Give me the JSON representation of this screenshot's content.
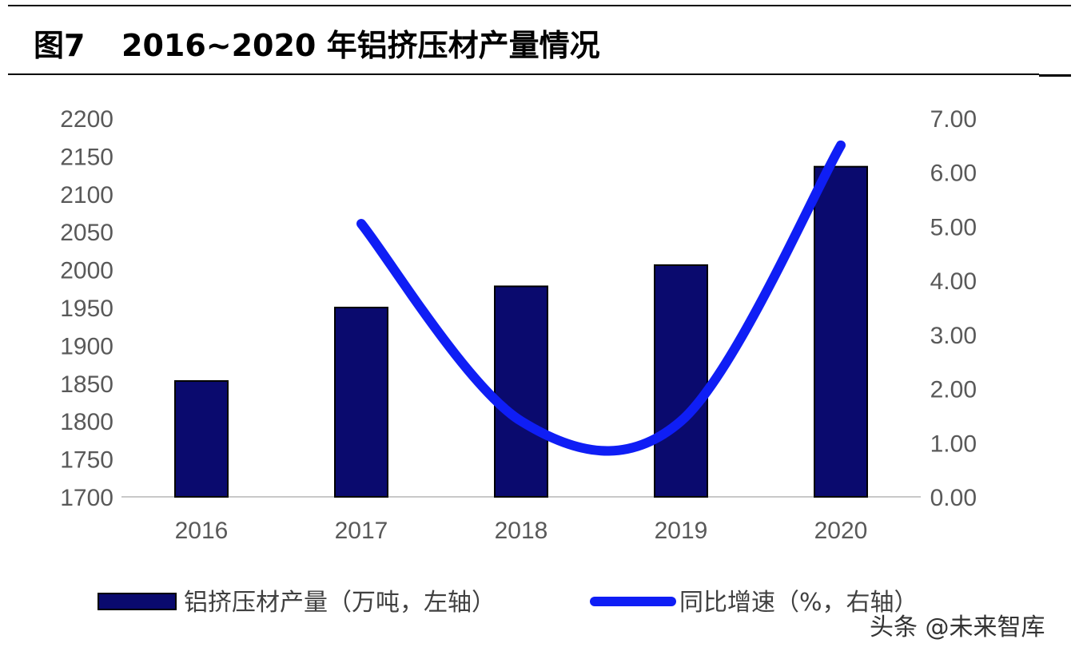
{
  "header": {
    "figure_label": "图7",
    "title": "2016~2020 年铝挤压材产量情况"
  },
  "chart_data": {
    "type": "bar",
    "categories": [
      "2016",
      "2017",
      "2018",
      "2019",
      "2020"
    ],
    "series": [
      {
        "name": "铝挤压材产量（万吨，左轴）",
        "type": "bar",
        "axis": "left",
        "values": [
          1853,
          1950,
          1978,
          2006,
          2136
        ]
      },
      {
        "name": "同比增速（%，右轴）",
        "type": "line",
        "axis": "right",
        "values": [
          null,
          5.05,
          1.4,
          1.4,
          6.5
        ]
      }
    ],
    "y_left": {
      "min": 1700,
      "max": 2200,
      "step": 50
    },
    "y_right": {
      "min": 0,
      "max": 7,
      "step": 1,
      "decimals": 2
    },
    "legend_position": "bottom",
    "colors": {
      "bar": "#0a0a6e",
      "line": "#0f1ef5",
      "axis": "#c8c8c8",
      "tick_text": "#595959"
    }
  },
  "watermark": "头条 @未来智库"
}
